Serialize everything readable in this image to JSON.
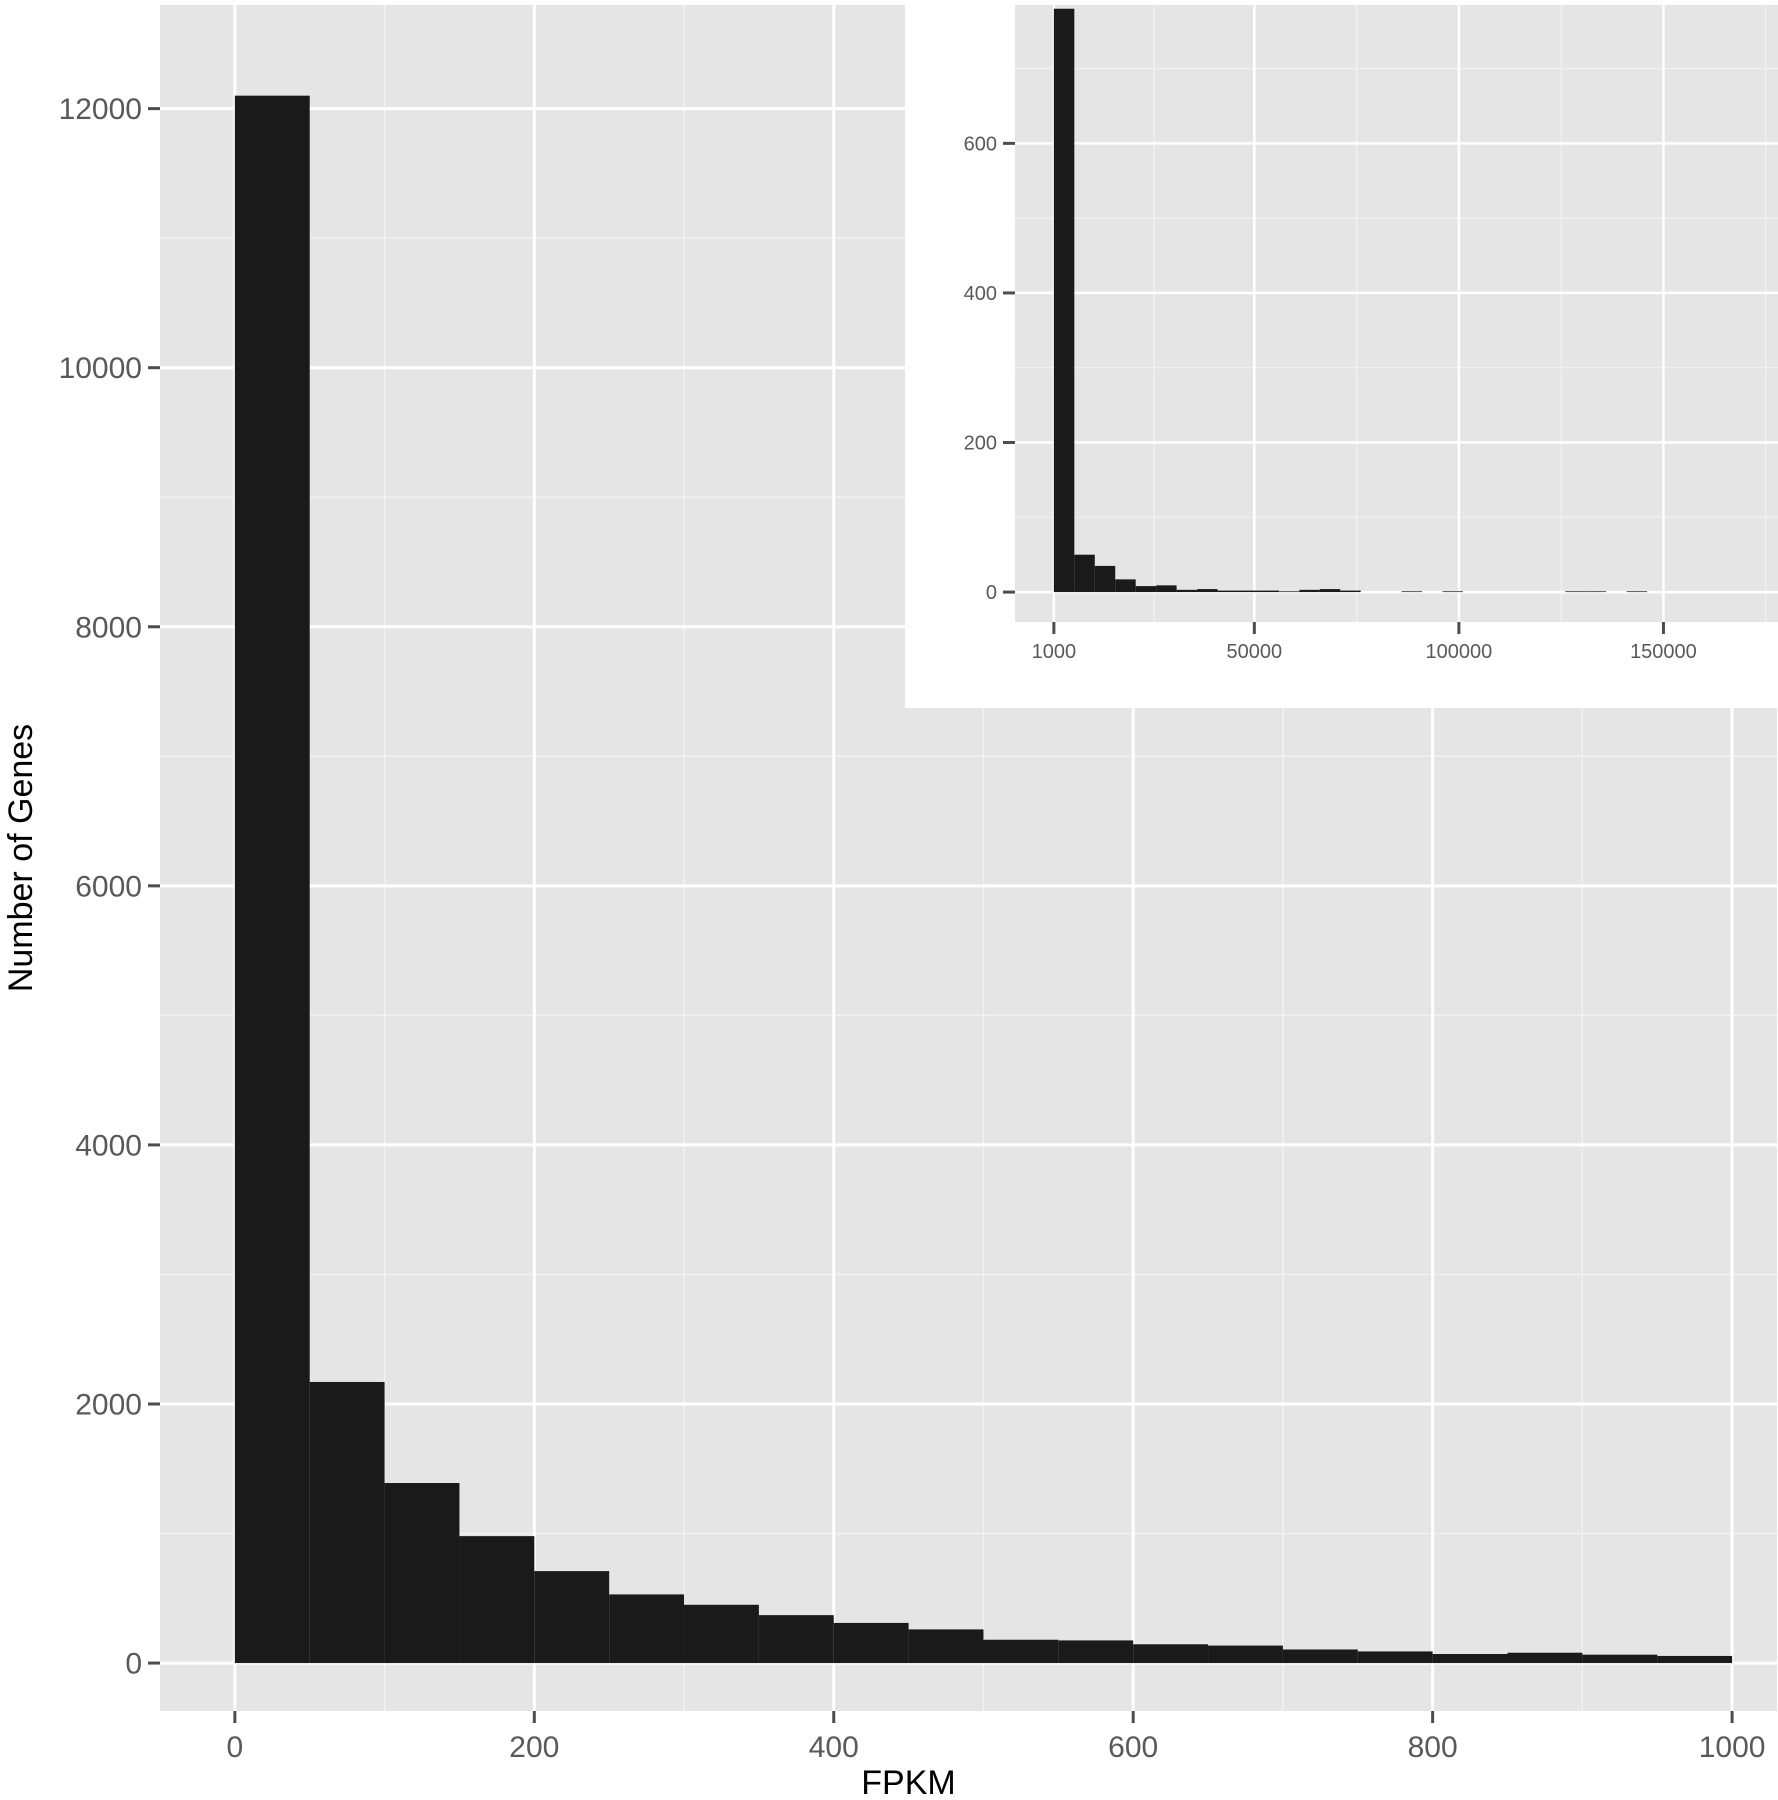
{
  "chart_data": [
    {
      "type": "bar",
      "title": "",
      "xlabel": "FPKM",
      "ylabel": "Number of Genes",
      "xlim": [
        -50,
        1030
      ],
      "ylim": [
        -370,
        12800
      ],
      "x_ticks": [
        0,
        200,
        400,
        600,
        800,
        1000
      ],
      "y_ticks": [
        0,
        2000,
        4000,
        6000,
        8000,
        10000,
        12000
      ],
      "bin_width": 50,
      "bin_starts": [
        0,
        50,
        100,
        150,
        200,
        250,
        300,
        350,
        400,
        450,
        500,
        550,
        600,
        650,
        700,
        750,
        800,
        850,
        900,
        950
      ],
      "values": [
        12100,
        2170,
        1390,
        980,
        710,
        530,
        450,
        370,
        310,
        260,
        180,
        175,
        145,
        135,
        105,
        90,
        70,
        80,
        65,
        55
      ],
      "grid": true,
      "background": "#E5E5E5",
      "bar_color": "#1A1A1A"
    },
    {
      "type": "bar",
      "title": "",
      "xlabel": "",
      "ylabel": "",
      "xlim": [
        -8500,
        178000
      ],
      "ylim": [
        -40,
        785
      ],
      "x_ticks": [
        1000,
        50000,
        100000,
        150000
      ],
      "x_tick_labels": [
        "1000",
        "50000",
        "100000",
        "150000"
      ],
      "y_ticks": [
        0,
        200,
        400,
        600
      ],
      "bin_width": 5000,
      "bin_starts": [
        1000,
        6000,
        11000,
        16000,
        21000,
        26000,
        31000,
        36000,
        41000,
        46000,
        51000,
        56000,
        61000,
        66000,
        71000,
        76000,
        81000,
        86000,
        91000,
        96000,
        101000,
        106000,
        111000,
        116000,
        121000,
        126000,
        131000,
        136000,
        141000
      ],
      "values": [
        780,
        50,
        35,
        17,
        8,
        9,
        3,
        4,
        2,
        2,
        2,
        1,
        3,
        4,
        2,
        0,
        0,
        1,
        0,
        1,
        0,
        0,
        0,
        0,
        0,
        1,
        1,
        0,
        1
      ],
      "grid": true,
      "background": "#E5E5E5",
      "bar_color": "#1A1A1A"
    }
  ]
}
